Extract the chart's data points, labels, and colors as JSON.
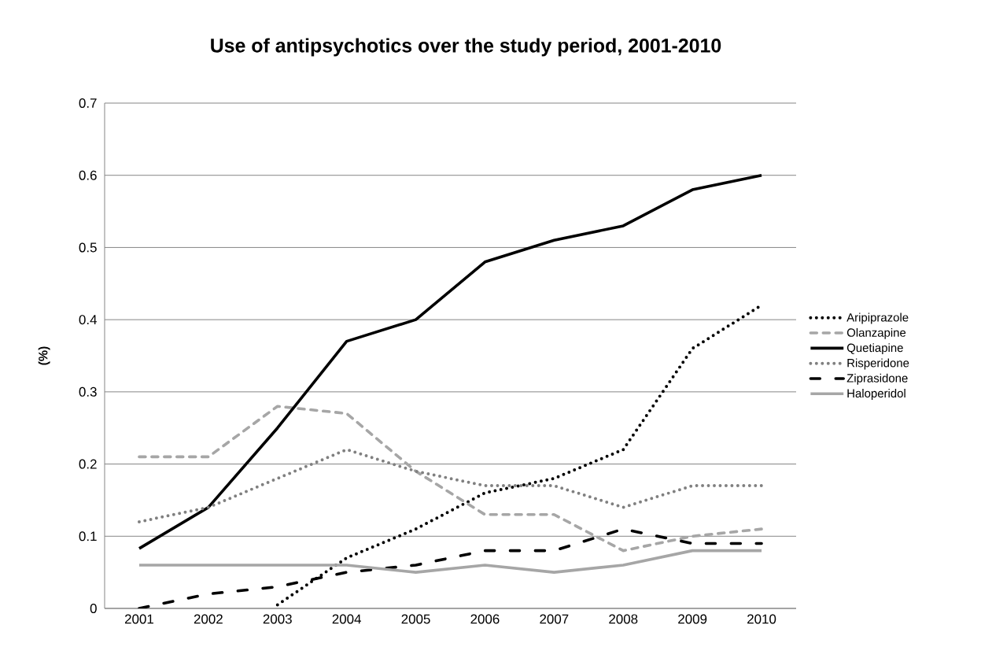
{
  "chart_data": {
    "type": "line",
    "title": "Use of antipsychotics over the study period, 2001-2010",
    "ylabel": "(%)",
    "categories": [
      "2001",
      "2002",
      "2003",
      "2004",
      "2005",
      "2006",
      "2007",
      "2008",
      "2009",
      "2010"
    ],
    "series": [
      {
        "name": "Aripiprazole",
        "color": "#000000",
        "line_style": "dotted",
        "values": [
          null,
          null,
          0.005,
          0.07,
          0.11,
          0.16,
          0.18,
          0.22,
          0.36,
          0.42
        ]
      },
      {
        "name": "Olanzapine",
        "color": "#a6a6a6",
        "line_style": "dashed",
        "values": [
          0.21,
          0.21,
          0.28,
          0.27,
          0.19,
          0.13,
          0.13,
          0.08,
          0.1,
          0.11
        ]
      },
      {
        "name": "Quetiapine",
        "color": "#000000",
        "line_style": "solid",
        "values": [
          0.083,
          0.14,
          0.25,
          0.37,
          0.4,
          0.48,
          0.51,
          0.53,
          0.58,
          0.6
        ]
      },
      {
        "name": "Risperidone",
        "color": "#808080",
        "line_style": "dotted",
        "values": [
          0.12,
          0.14,
          0.18,
          0.22,
          0.19,
          0.17,
          0.17,
          0.14,
          0.17,
          0.17
        ]
      },
      {
        "name": "Ziprasidone",
        "color": "#000000",
        "line_style": "dashdot",
        "values": [
          0,
          0.02,
          0.03,
          0.05,
          0.06,
          0.08,
          0.08,
          0.11,
          0.09,
          0.09
        ]
      },
      {
        "name": "Haloperidol",
        "color": "#a6a6a6",
        "line_style": "solid",
        "values": [
          0.06,
          0.06,
          0.06,
          0.06,
          0.05,
          0.06,
          0.05,
          0.06,
          0.08,
          0.08
        ]
      }
    ],
    "ylim": [
      0,
      0.7
    ],
    "yticks": [
      0,
      0.1,
      0.2,
      0.3,
      0.4,
      0.5,
      0.6,
      0.7
    ],
    "grid": "y",
    "legend": "right",
    "marker": "none"
  }
}
